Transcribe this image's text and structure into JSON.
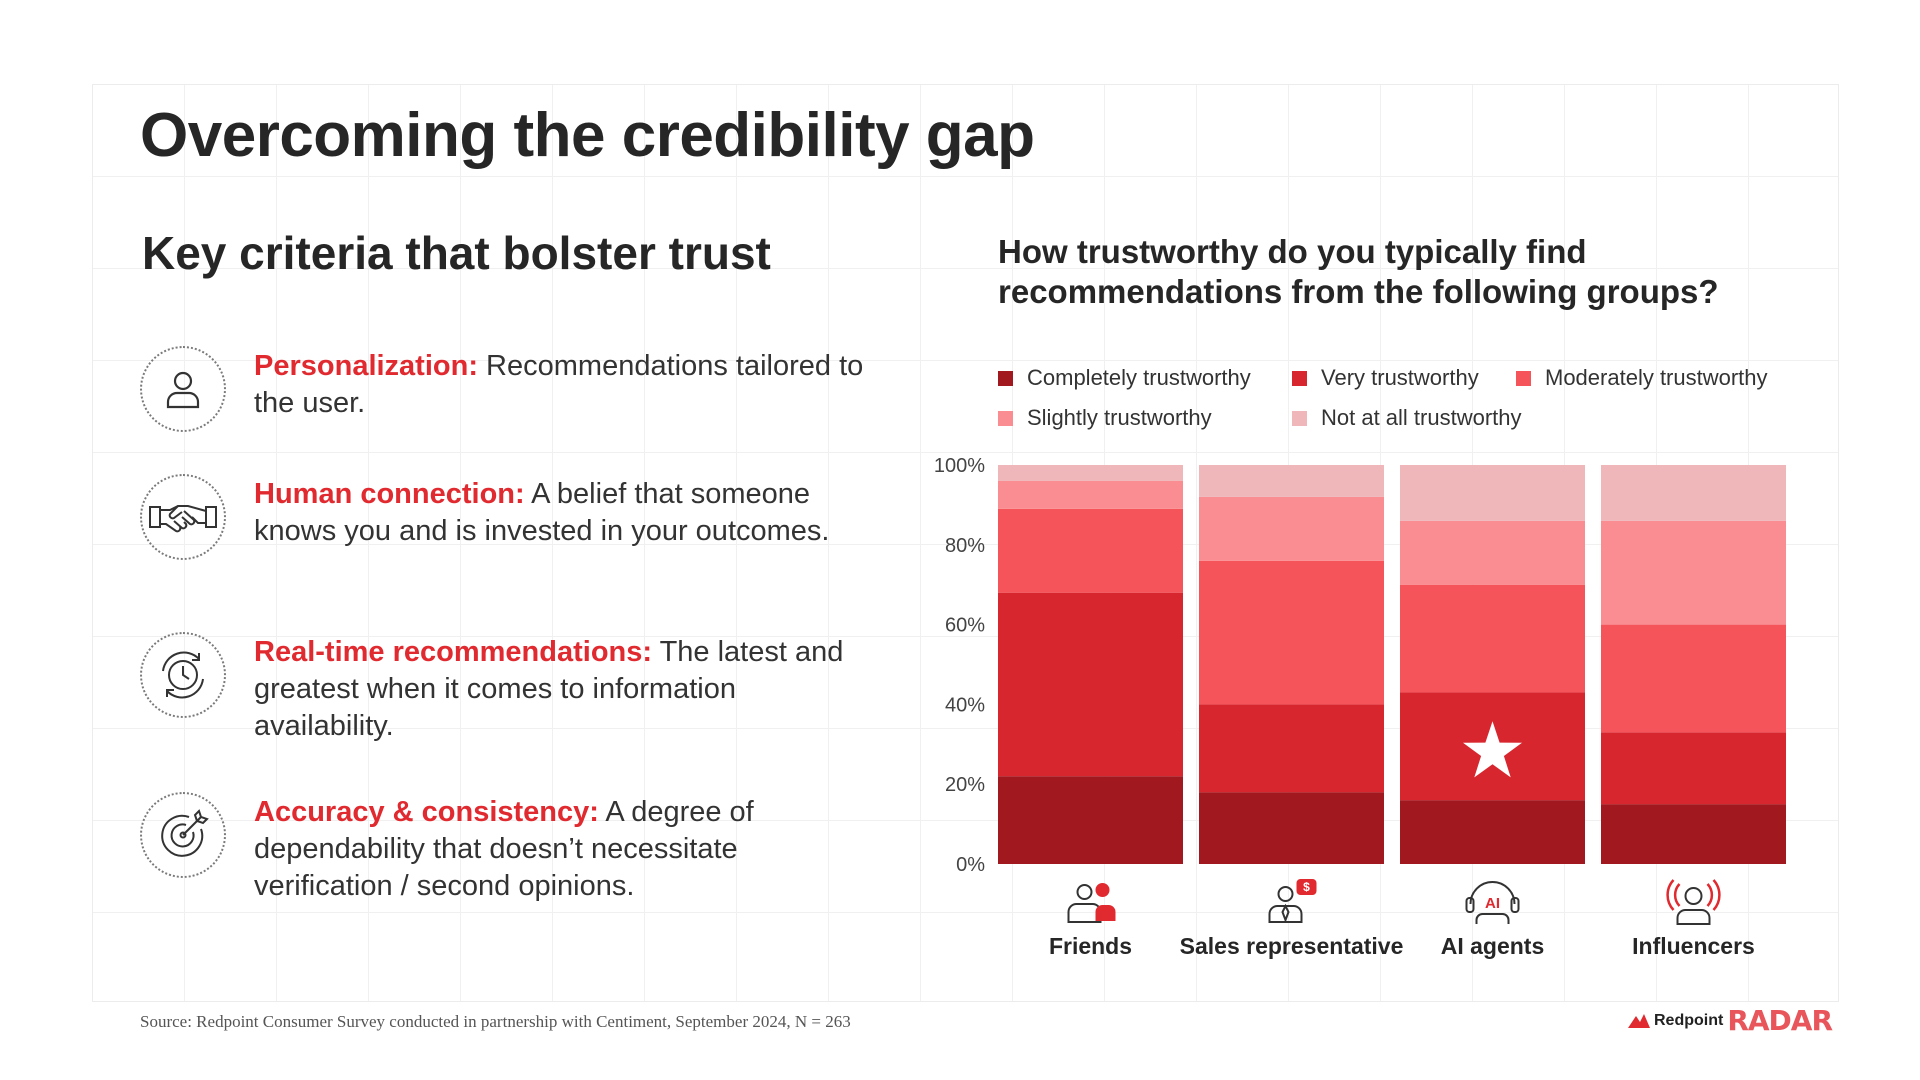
{
  "title": "Overcoming the credibility gap",
  "left": {
    "heading": "Key criteria that bolster trust",
    "criteria": [
      {
        "label": "Personalization:",
        "text": " Recommendations tailored to the user.",
        "icon": "user-icon"
      },
      {
        "label": "Human connection:",
        "text": " A belief that someone knows you and is invested in your outcomes.",
        "icon": "handshake-icon"
      },
      {
        "label": "Real-time recommendations:",
        "text": " The latest and greatest when it comes to information availability.",
        "icon": "clock-refresh-icon"
      },
      {
        "label": "Accuracy & consistency:",
        "text": " A degree of dependability that doesn’t necessitate verification / second opinions.",
        "icon": "target-icon"
      }
    ]
  },
  "colors": {
    "accent": "#e02a2f",
    "completely": "#a1181f",
    "very": "#d8262e",
    "moderately": "#f4545a",
    "slightly": "#fa8d91",
    "not_at_all": "#efb7ba"
  },
  "chart_data": {
    "type": "bar",
    "stacked": true,
    "title": "How trustworthy do you typically find recommendations from the following groups?",
    "categories": [
      "Friends",
      "Sales representative",
      "AI agents",
      "Influencers"
    ],
    "category_icons": [
      "friends-icon",
      "sales-rep-icon",
      "ai-agent-icon",
      "influencer-icon"
    ],
    "series": [
      {
        "name": "Completely trustworthy",
        "values": [
          22,
          18,
          16,
          15
        ]
      },
      {
        "name": "Very trustworthy",
        "values": [
          46,
          22,
          27,
          18
        ]
      },
      {
        "name": "Moderately trustworthy",
        "values": [
          21,
          36,
          27,
          27
        ]
      },
      {
        "name": "Slightly trustworthy",
        "values": [
          7,
          16,
          16,
          26
        ]
      },
      {
        "name": "Not at all trustworthy",
        "values": [
          4,
          8,
          14,
          14
        ]
      }
    ],
    "yticks": [
      "0%",
      "20%",
      "40%",
      "60%",
      "80%",
      "100%"
    ],
    "ylim": [
      0,
      100
    ],
    "highlight": {
      "category": "AI agents",
      "series": "Very trustworthy",
      "marker": "star"
    },
    "legend_position": "top"
  },
  "footer": {
    "source": "Source: Redpoint Consumer Survey conducted in partnership with Centiment, September 2024, N = 263",
    "brand_name": "Redpoint",
    "brand_product": "RADAR"
  }
}
